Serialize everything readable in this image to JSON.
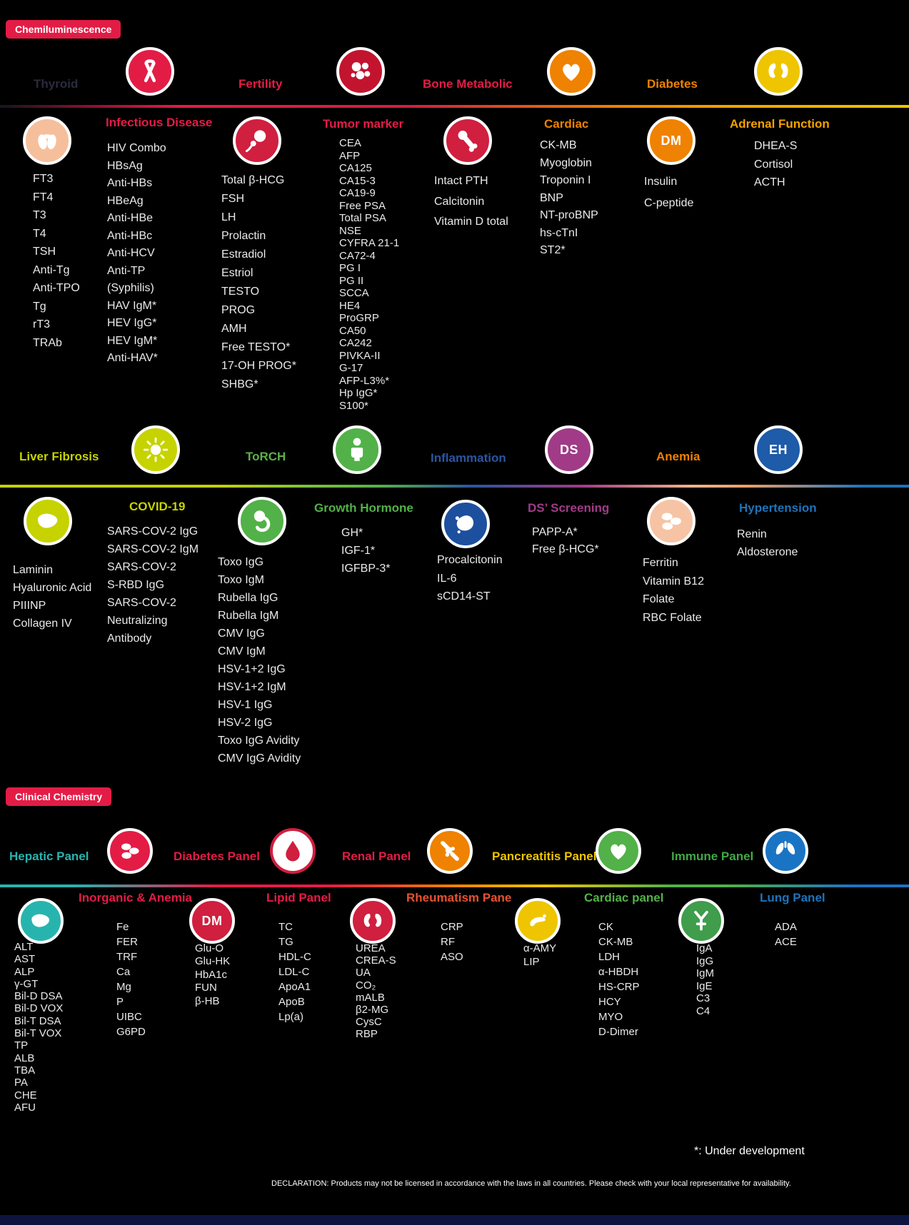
{
  "badges": {
    "chemiluminescence": "Chemiluminescence",
    "clinical_chemistry": "Clinical Chemistry",
    "badge_color": "#e31c46"
  },
  "row1": {
    "thyroid": {
      "label": "Thyroid",
      "color": "#2b2b3d",
      "icon_bg": "#f6bf9c",
      "items": [
        "FT3",
        "FT4",
        "T3",
        "T4",
        "TSH",
        "Anti-Tg",
        "Anti-TPO",
        "Tg",
        "rT3",
        "TRAb"
      ]
    },
    "infectious": {
      "label": "Infectious Disease",
      "color": "#e31c46",
      "icon_bg": "#e31c46",
      "items": [
        "HIV Combo",
        "HBsAg",
        "Anti-HBs",
        "HBeAg",
        "Anti-HBe",
        "Anti-HBc",
        "Anti-HCV",
        "Anti-TP",
        "(Syphilis)",
        "HAV IgM*",
        "HEV IgG*",
        "HEV IgM*",
        "Anti-HAV*"
      ]
    },
    "fertility": {
      "label": "Fertility",
      "color": "#e31c46",
      "icon_bg": "#d01f3f",
      "items": [
        "Total β-HCG",
        "FSH",
        "LH",
        "Prolactin",
        "Estradiol",
        "Estriol",
        "TESTO",
        "PROG",
        "AMH",
        "Free TESTO*",
        "17-OH PROG*",
        "SHBG*"
      ]
    },
    "tumor": {
      "label": "Tumor marker",
      "color": "#e31c46",
      "icon_bg": "#c3142f",
      "items": [
        "CEA",
        "AFP",
        "CA125",
        "CA15-3",
        "CA19-9",
        "Free PSA",
        "Total PSA",
        "NSE",
        "CYFRA 21-1",
        "CA72-4",
        "PG I",
        "PG II",
        "SCCA",
        "HE4",
        "ProGRP",
        "CA50",
        "CA242",
        "PIVKA-II",
        "G-17",
        "AFP-L3%*",
        "Hp IgG*",
        "S100*"
      ]
    },
    "bone": {
      "label": "Bone Metabolic",
      "color": "#e31c46",
      "icon_bg": "#d01f3f",
      "items": [
        "Intact PTH",
        "Calcitonin",
        "Vitamin D total"
      ]
    },
    "cardiac": {
      "label": "Cardiac",
      "color": "#ef8200",
      "icon_bg": "#ef8200",
      "items": [
        "CK-MB",
        "Myoglobin",
        "Troponin I",
        "BNP",
        "NT-proBNP",
        "hs-cTnI",
        "ST2*"
      ]
    },
    "diabetes": {
      "label": "Diabetes",
      "color": "#ef8200",
      "icon_bg": "#ef8200",
      "glyph_text": "DM",
      "items": [
        "Insulin",
        "C-peptide"
      ]
    },
    "adrenal": {
      "label": "Adrenal Function",
      "color": "#f5a200",
      "icon_bg": "#eec500",
      "items": [
        "DHEA-S",
        "Cortisol",
        "ACTH"
      ]
    }
  },
  "row2": {
    "liverfib": {
      "label": "Liver Fibrosis",
      "color": "#c6d300",
      "icon_bg": "#c6d300",
      "items": [
        "Laminin",
        "Hyaluronic Acid",
        "PIIINP",
        "Collagen IV"
      ]
    },
    "covid": {
      "label": "COVID-19",
      "color": "#c6d300",
      "icon_bg": "#c6d300",
      "items": [
        "SARS-COV-2 IgG",
        "SARS-COV-2 IgM",
        "SARS-COV-2",
        "S-RBD IgG",
        "SARS-COV-2",
        "Neutralizing",
        "Antibody"
      ]
    },
    "torch": {
      "label": "ToRCH",
      "color": "#5cb247",
      "icon_bg": "#52b148",
      "items": [
        "Toxo IgG",
        "Toxo IgM",
        "Rubella IgG",
        "Rubella IgM",
        "CMV IgG",
        "CMV IgM",
        "HSV-1+2 IgG",
        "HSV-1+2 IgM",
        "HSV-1 IgG",
        "HSV-2 IgG",
        "Toxo IgG Avidity",
        "CMV IgG Avidity"
      ]
    },
    "growth": {
      "label": "Growth Hormone",
      "color": "#52b148",
      "icon_bg": "#52b148",
      "items": [
        "GH*",
        "IGF-1*",
        "IGFBP-3*"
      ]
    },
    "inflammation": {
      "label": "Inflammation",
      "color": "#2b55a2",
      "icon_bg": "#1c4f9e",
      "items": [
        "Procalcitonin",
        "IL-6",
        "sCD14-ST"
      ]
    },
    "ds": {
      "label": "DS’ Screening",
      "color": "#a13b87",
      "icon_bg": "#a13b87",
      "glyph_text": "DS",
      "items": [
        "PAPP-A*",
        "Free β-HCG*"
      ]
    },
    "anemia": {
      "label": "Anemia",
      "color": "#ef8200",
      "icon_bg": "#f6c4a4",
      "items": [
        "Ferritin",
        "Vitamin B12",
        "Folate",
        "RBC Folate"
      ]
    },
    "hypertension": {
      "label": "Hypertension",
      "color": "#1e73ba",
      "icon_bg": "#1e5ba8",
      "glyph_text": "EH",
      "items": [
        "Renin",
        "Aldosterone"
      ]
    }
  },
  "row3": {
    "hepatic": {
      "label": "Hepatic Panel",
      "color": "#27b4af",
      "icon_bg": "#27b4af",
      "items": [
        "ALT",
        "AST",
        "ALP",
        "γ-GT",
        "Bil-D DSA",
        "Bil-D VOX",
        "Bil-T DSA",
        "Bil-T VOX",
        "TP",
        "ALB",
        "TBA",
        "PA",
        "CHE",
        "AFU"
      ]
    },
    "inorganic": {
      "label": "Inorganic & Anemia",
      "color": "#e31c46",
      "icon_bg": "#e31c46",
      "items": [
        "Fe",
        "FER",
        "TRF",
        "Ca",
        "Mg",
        "P",
        "UIBC",
        "G6PD"
      ]
    },
    "diabetes_panel": {
      "label": "Diabetes Panel",
      "color": "#e31c46",
      "icon_bg": "#d01f3f",
      "glyph_text": "DM",
      "items": [
        "Glu-O",
        "Glu-HK",
        "HbA1c",
        "FUN",
        "β-HB"
      ]
    },
    "lipid": {
      "label": "Lipid Panel",
      "color": "#e31c46",
      "icon_bg": "#ffffff",
      "ring": "#d01f3f",
      "items": [
        "TC",
        "TG",
        "HDL-C",
        "LDL-C",
        "ApoA1",
        "ApoB",
        "Lp(a)"
      ]
    },
    "renal": {
      "label": "Renal Panel",
      "color": "#e31c46",
      "icon_bg": "#d01f3f",
      "items": [
        "UREA",
        "CREA-S",
        "UA",
        "CO₂",
        "mALB",
        "β2-MG",
        "CysC",
        "RBP"
      ]
    },
    "rheumatism": {
      "label": "Rheumatism Pane",
      "color": "#e8512f",
      "icon_bg": "#ef8200",
      "items": [
        "CRP",
        "RF",
        "ASO"
      ]
    },
    "pancreatitis": {
      "label": "Pancreatitis Panel",
      "color": "#eec500",
      "icon_bg": "#eec500",
      "items": [
        "α-AMY",
        "LIP"
      ]
    },
    "cardiac_panel": {
      "label": "Cardiac panel",
      "color": "#52b148",
      "icon_bg": "#52b148",
      "items": [
        "CK",
        "CK-MB",
        "LDH",
        "α-HBDH",
        "HS-CRP",
        "HCY",
        "MYO",
        "D-Dimer"
      ]
    },
    "immune": {
      "label": "Immune Panel",
      "color": "#42a845",
      "icon_bg": "#3f9d4b",
      "items": [
        "IgA",
        "IgG",
        "IgM",
        "IgE",
        "C3",
        "C4"
      ]
    },
    "lung": {
      "label": "Lung Panel",
      "color": "#1e73ba",
      "icon_bg": "#1a74c4",
      "items": [
        "ADA",
        "ACE"
      ]
    }
  },
  "footer": {
    "under_development": "*: Under development",
    "declaration": "DECLARATION: Products may not be licensed in accordance with the laws in all countries. Please check with your local representative for availability."
  }
}
